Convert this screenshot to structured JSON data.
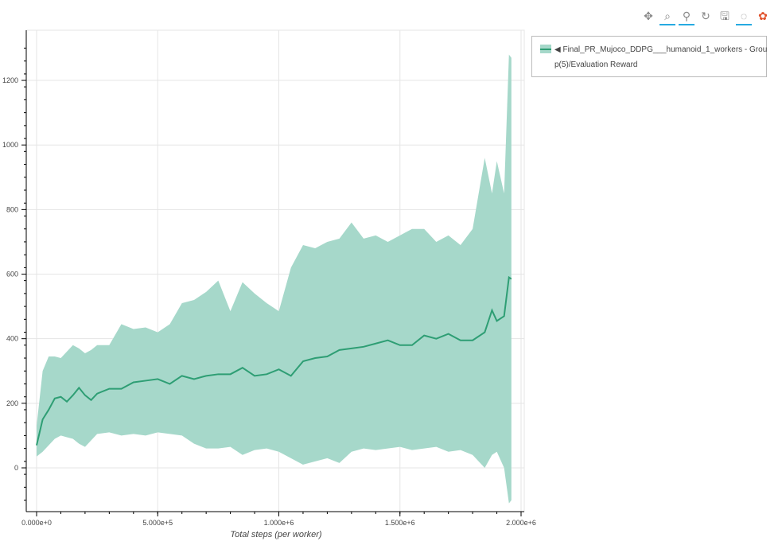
{
  "toolbar": {
    "tools": [
      {
        "name": "pan-icon",
        "glyph": "✥",
        "active": false
      },
      {
        "name": "box-zoom-icon",
        "glyph": "⌕",
        "active": true
      },
      {
        "name": "wheel-zoom-icon",
        "glyph": "⚲",
        "active": true
      },
      {
        "name": "reset-icon",
        "glyph": "↻",
        "active": false
      },
      {
        "name": "save-icon",
        "glyph": "🖫",
        "active": false
      },
      {
        "name": "crosshair-icon",
        "glyph": "◌",
        "active": true
      },
      {
        "name": "bokeh-logo-icon",
        "glyph": "✿",
        "active": false
      }
    ]
  },
  "legend": {
    "line1": "◀ Final_PR_Mujoco_DDPG___humanoid_1_workers - Grou",
    "line2": "p(5)/Evaluation Reward"
  },
  "chart_data": {
    "type": "line",
    "xlabel": "Total steps (per worker)",
    "ylabel": "",
    "xlim": [
      -40000,
      2010000
    ],
    "ylim": [
      -135,
      1350
    ],
    "grid": true,
    "legend_placement": "right",
    "x_ticks": [
      0,
      500000,
      1000000,
      1500000,
      2000000
    ],
    "x_tick_labels": [
      "0.000e+0",
      "5.000e+5",
      "1.000e+6",
      "1.500e+6",
      "2.000e+6"
    ],
    "y_ticks": [
      0,
      200,
      400,
      600,
      800,
      1000,
      1200
    ],
    "y_tick_labels": [
      "0",
      "200",
      "400",
      "600",
      "800",
      "1000",
      "1200"
    ],
    "colors": {
      "line": "#2e9e74",
      "band": "#a6d8ca"
    },
    "series": [
      {
        "name": "Final_PR_Mujoco_DDPG___humanoid_1_workers - Group(5)/Evaluation Reward",
        "x": [
          0,
          25000,
          50000,
          75000,
          100000,
          125000,
          150000,
          175000,
          200000,
          225000,
          250000,
          300000,
          350000,
          400000,
          450000,
          500000,
          550000,
          600000,
          650000,
          700000,
          750000,
          800000,
          850000,
          900000,
          950000,
          1000000,
          1050000,
          1100000,
          1150000,
          1200000,
          1250000,
          1300000,
          1350000,
          1400000,
          1450000,
          1500000,
          1550000,
          1600000,
          1650000,
          1700000,
          1750000,
          1800000,
          1850000,
          1880000,
          1900000,
          1930000,
          1950000,
          1960000
        ],
        "mean": [
          70,
          150,
          180,
          215,
          220,
          205,
          225,
          248,
          225,
          210,
          230,
          245,
          245,
          265,
          270,
          275,
          260,
          285,
          275,
          285,
          290,
          290,
          310,
          285,
          290,
          305,
          285,
          330,
          340,
          345,
          365,
          370,
          375,
          385,
          395,
          380,
          380,
          410,
          400,
          415,
          395,
          395,
          420,
          488,
          455,
          470,
          590,
          585
        ],
        "upper": [
          130,
          300,
          345,
          345,
          340,
          360,
          380,
          370,
          355,
          365,
          380,
          380,
          445,
          430,
          435,
          420,
          445,
          510,
          520,
          545,
          580,
          485,
          575,
          540,
          510,
          485,
          620,
          690,
          680,
          700,
          710,
          760,
          710,
          720,
          700,
          720,
          740,
          740,
          700,
          720,
          690,
          740,
          960,
          850,
          950,
          850,
          1280,
          1270
        ],
        "lower": [
          35,
          50,
          70,
          90,
          100,
          95,
          90,
          75,
          65,
          85,
          105,
          110,
          100,
          105,
          100,
          110,
          105,
          100,
          75,
          60,
          60,
          65,
          40,
          55,
          60,
          50,
          30,
          10,
          20,
          30,
          15,
          50,
          60,
          55,
          60,
          65,
          55,
          60,
          65,
          50,
          55,
          40,
          0,
          40,
          50,
          0,
          -110,
          -100
        ]
      }
    ]
  }
}
